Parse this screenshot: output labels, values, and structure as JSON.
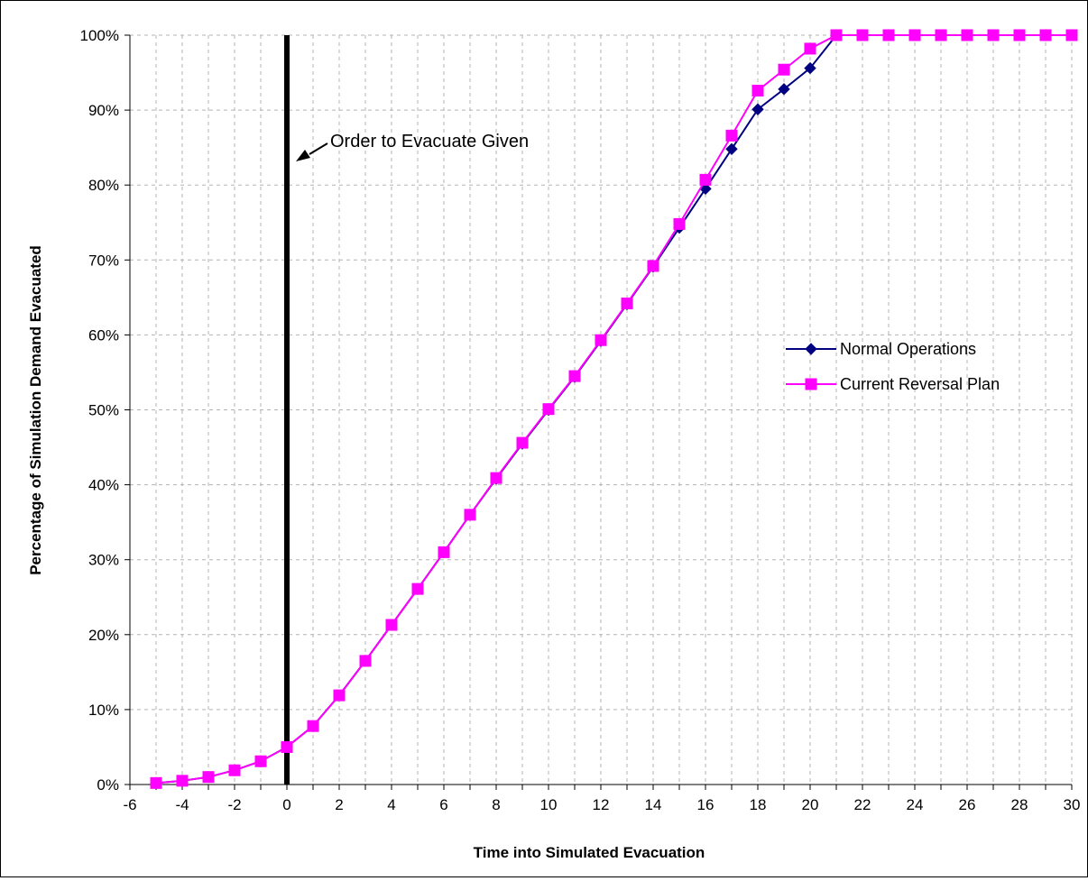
{
  "chart_data": {
    "type": "line",
    "title": "",
    "xlabel": "Time into Simulated Evacuation",
    "ylabel": "Percentage of Simulation Demand Evacuated",
    "xlim": [
      -6,
      30
    ],
    "ylim": [
      0,
      100
    ],
    "x_ticks": [
      -6,
      -4,
      -2,
      0,
      2,
      4,
      6,
      8,
      10,
      12,
      14,
      16,
      18,
      20,
      22,
      24,
      26,
      28,
      30
    ],
    "y_ticks": [
      0,
      10,
      20,
      30,
      40,
      50,
      60,
      70,
      80,
      90,
      100
    ],
    "y_tick_labels": [
      "0%",
      "10%",
      "20%",
      "30%",
      "40%",
      "50%",
      "60%",
      "70%",
      "80%",
      "90%",
      "100%"
    ],
    "grid": true,
    "legend_position": "right",
    "vertical_marker": {
      "x": 0,
      "label": "Order to Evacuate Given"
    },
    "x": [
      -5,
      -4,
      -3,
      -2,
      -1,
      0,
      1,
      2,
      3,
      4,
      5,
      6,
      7,
      8,
      9,
      10,
      11,
      12,
      13,
      14,
      15,
      16,
      17,
      18,
      19,
      20,
      21,
      22,
      23,
      24,
      25,
      26,
      27,
      28,
      29,
      30
    ],
    "series": [
      {
        "name": "Normal Operations",
        "color": "#000080",
        "marker": "diamond",
        "values": [
          0.2,
          0.5,
          1.0,
          1.9,
          3.1,
          5.0,
          7.8,
          11.9,
          16.5,
          21.3,
          26.1,
          31.0,
          36.0,
          40.8,
          45.5,
          50.0,
          54.4,
          59.2,
          64.1,
          69.1,
          74.3,
          79.5,
          84.8,
          90.1,
          92.8,
          95.6,
          100,
          100,
          100,
          100,
          100,
          100,
          100,
          100,
          100,
          100
        ]
      },
      {
        "name": "Current Reversal Plan",
        "color": "#FF00FF",
        "marker": "square",
        "values": [
          0.2,
          0.5,
          1.0,
          1.9,
          3.1,
          5.0,
          7.8,
          11.9,
          16.5,
          21.3,
          26.1,
          31.0,
          36.0,
          40.9,
          45.6,
          50.1,
          54.5,
          59.3,
          64.2,
          69.2,
          74.8,
          80.7,
          86.6,
          92.6,
          95.4,
          98.2,
          100,
          100,
          100,
          100,
          100,
          100,
          100,
          100,
          100,
          100
        ]
      }
    ]
  }
}
